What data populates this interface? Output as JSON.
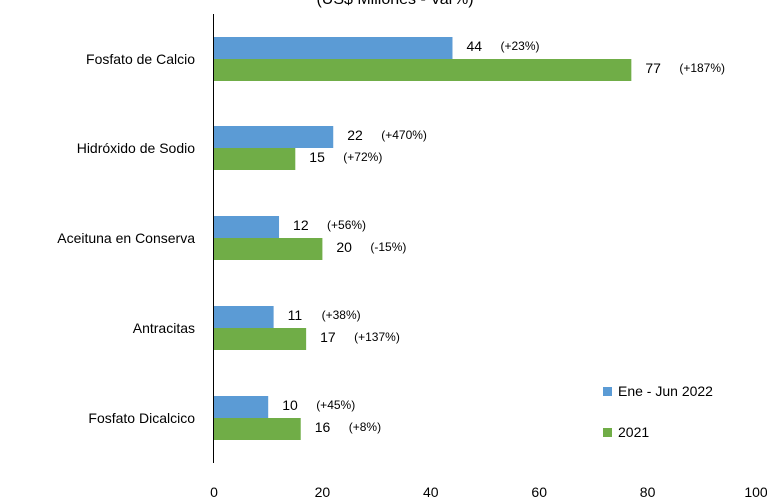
{
  "chart_data": {
    "type": "bar",
    "orientation": "horizontal",
    "title": "(US$ Millones - Var%)",
    "categories": [
      "Fosfato de Calcio",
      "Hidróxido de Sodio",
      "Aceituna en Conserva",
      "Antracitas",
      "Fosfato Dicalcico"
    ],
    "series": [
      {
        "name": "Ene - Jun 2022",
        "color": "#5B9BD5",
        "values": [
          44,
          22,
          12,
          11,
          10
        ],
        "labels": [
          "44",
          "22",
          "12",
          "11",
          "10"
        ],
        "variations": [
          "(+23%)",
          "(+470%)",
          "(+56%)",
          "(+38%)",
          "(+45%)"
        ]
      },
      {
        "name": "2021",
        "color": "#70AD47",
        "values": [
          77,
          15,
          20,
          17,
          16
        ],
        "labels": [
          "77",
          "15",
          "20",
          "17",
          "16"
        ],
        "variations": [
          "(+187%)",
          "(+72%)",
          "(-15%)",
          "(+137%)",
          "(+8%)"
        ]
      }
    ],
    "xlim": [
      0,
      100
    ],
    "xticks": [
      "0",
      "20",
      "40",
      "60",
      "80",
      "100"
    ],
    "grid": false,
    "legend_position": "bottom-right"
  }
}
